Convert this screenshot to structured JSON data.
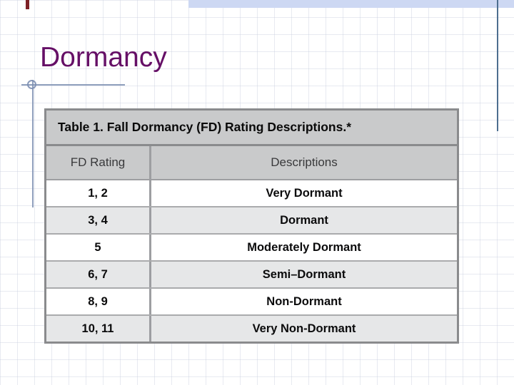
{
  "slide": {
    "title": "Dormancy"
  },
  "table": {
    "caption": "Table 1. Fall Dormancy (FD) Rating Descriptions.*",
    "columns": [
      "FD Rating",
      "Descriptions"
    ],
    "rows": [
      {
        "rating": "1, 2",
        "description": "Very Dormant"
      },
      {
        "rating": "3, 4",
        "description": "Dormant"
      },
      {
        "rating": "5",
        "description": "Moderately Dormant"
      },
      {
        "rating": "6, 7",
        "description": "Semi–Dormant"
      },
      {
        "rating": "8, 9",
        "description": "Non-Dormant"
      },
      {
        "rating": "10, 11",
        "description": "Very Non-Dormant"
      }
    ]
  },
  "colors": {
    "title_text": "#650f66",
    "top_band": "#cdd8f3",
    "right_rule": "#4d6e8f",
    "red_dash": "#7d2026",
    "decor_line": "#7d8fb2",
    "table_header_bg": "#c9cacb",
    "table_row_shaded_bg": "#e6e7e8",
    "table_border": "#8a8b8d"
  }
}
